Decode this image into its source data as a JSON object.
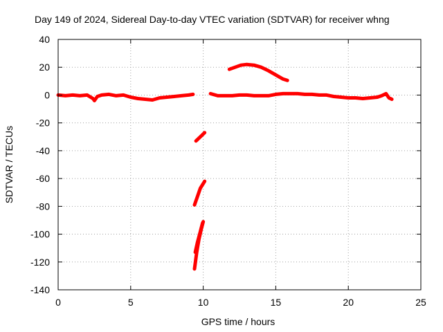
{
  "chart_data": {
    "type": "line",
    "title": "Day 149 of 2024, Sidereal Day-to-day VTEC variation (SDTVAR) for receiver whng",
    "xlabel": "GPS time / hours",
    "ylabel": "SDTVAR / TECUs",
    "xlim": [
      0,
      25
    ],
    "ylim": [
      -140,
      40
    ],
    "xticks": [
      0,
      5,
      10,
      15,
      20,
      25
    ],
    "yticks": [
      40,
      20,
      0,
      -20,
      -40,
      -60,
      -80,
      -100,
      -120,
      -140
    ],
    "grid": true,
    "series": [
      {
        "name": "main-trace-segment-1",
        "color": "#ff0000",
        "points": [
          [
            0,
            0
          ],
          [
            0.5,
            -0.5
          ],
          [
            1,
            0
          ],
          [
            1.5,
            -0.5
          ],
          [
            2,
            0
          ],
          [
            2.4,
            -2.5
          ],
          [
            2.5,
            -4
          ],
          [
            2.7,
            -1
          ],
          [
            3,
            0
          ],
          [
            3.5,
            0.5
          ],
          [
            4,
            -0.5
          ],
          [
            4.5,
            0
          ],
          [
            5,
            -1.5
          ],
          [
            5.5,
            -2.5
          ],
          [
            6,
            -3
          ],
          [
            6.5,
            -3.5
          ],
          [
            7,
            -2
          ],
          [
            7.5,
            -1.5
          ],
          [
            8,
            -1
          ],
          [
            8.5,
            -0.5
          ],
          [
            9,
            0
          ],
          [
            9.3,
            0.5
          ]
        ]
      },
      {
        "name": "main-trace-segment-2",
        "color": "#ff0000",
        "points": [
          [
            10.5,
            1
          ],
          [
            11,
            -0.5
          ],
          [
            11.5,
            -0.5
          ],
          [
            12,
            -0.5
          ],
          [
            12.5,
            0
          ],
          [
            13,
            0
          ],
          [
            13.5,
            -0.5
          ],
          [
            14,
            -0.5
          ],
          [
            14.5,
            -0.5
          ],
          [
            15,
            0.5
          ],
          [
            15.5,
            1
          ],
          [
            16,
            1
          ],
          [
            16.5,
            1
          ],
          [
            17,
            0.5
          ],
          [
            17.5,
            0.5
          ],
          [
            18,
            0
          ],
          [
            18.5,
            0
          ],
          [
            19,
            -1
          ],
          [
            19.5,
            -1.5
          ],
          [
            20,
            -2
          ],
          [
            20.5,
            -2
          ],
          [
            21,
            -2.5
          ],
          [
            21.5,
            -2
          ],
          [
            22,
            -1.5
          ],
          [
            22.3,
            -0.5
          ],
          [
            22.6,
            1
          ],
          [
            22.8,
            -2
          ],
          [
            23,
            -3
          ]
        ]
      },
      {
        "name": "hump-arc",
        "color": "#ff0000",
        "points": [
          [
            11.8,
            18.5
          ],
          [
            12.2,
            20
          ],
          [
            12.6,
            21.5
          ],
          [
            13,
            22
          ],
          [
            13.5,
            21.5
          ],
          [
            14,
            20
          ],
          [
            14.5,
            17.5
          ],
          [
            15,
            14.5
          ],
          [
            15.5,
            11.5
          ],
          [
            15.8,
            10.5
          ]
        ]
      },
      {
        "name": "drop-segment-1",
        "color": "#ff0000",
        "points": [
          [
            9.5,
            -33
          ],
          [
            9.7,
            -31
          ],
          [
            9.9,
            -29
          ],
          [
            10.1,
            -27
          ]
        ]
      },
      {
        "name": "drop-segment-2",
        "color": "#ff0000",
        "points": [
          [
            9.4,
            -79
          ],
          [
            9.6,
            -73
          ],
          [
            9.8,
            -67
          ],
          [
            10.1,
            -62
          ]
        ]
      },
      {
        "name": "drop-segment-3",
        "color": "#ff0000",
        "points": [
          [
            9.4,
            -125
          ],
          [
            9.55,
            -113
          ],
          [
            9.7,
            -104
          ],
          [
            9.85,
            -97
          ],
          [
            10.0,
            -91
          ]
        ]
      },
      {
        "name": "drop-segment-3b",
        "color": "#ff0000",
        "points": [
          [
            9.45,
            -113
          ],
          [
            9.6,
            -106
          ],
          [
            9.75,
            -100
          ],
          [
            9.95,
            -92
          ]
        ]
      }
    ]
  }
}
